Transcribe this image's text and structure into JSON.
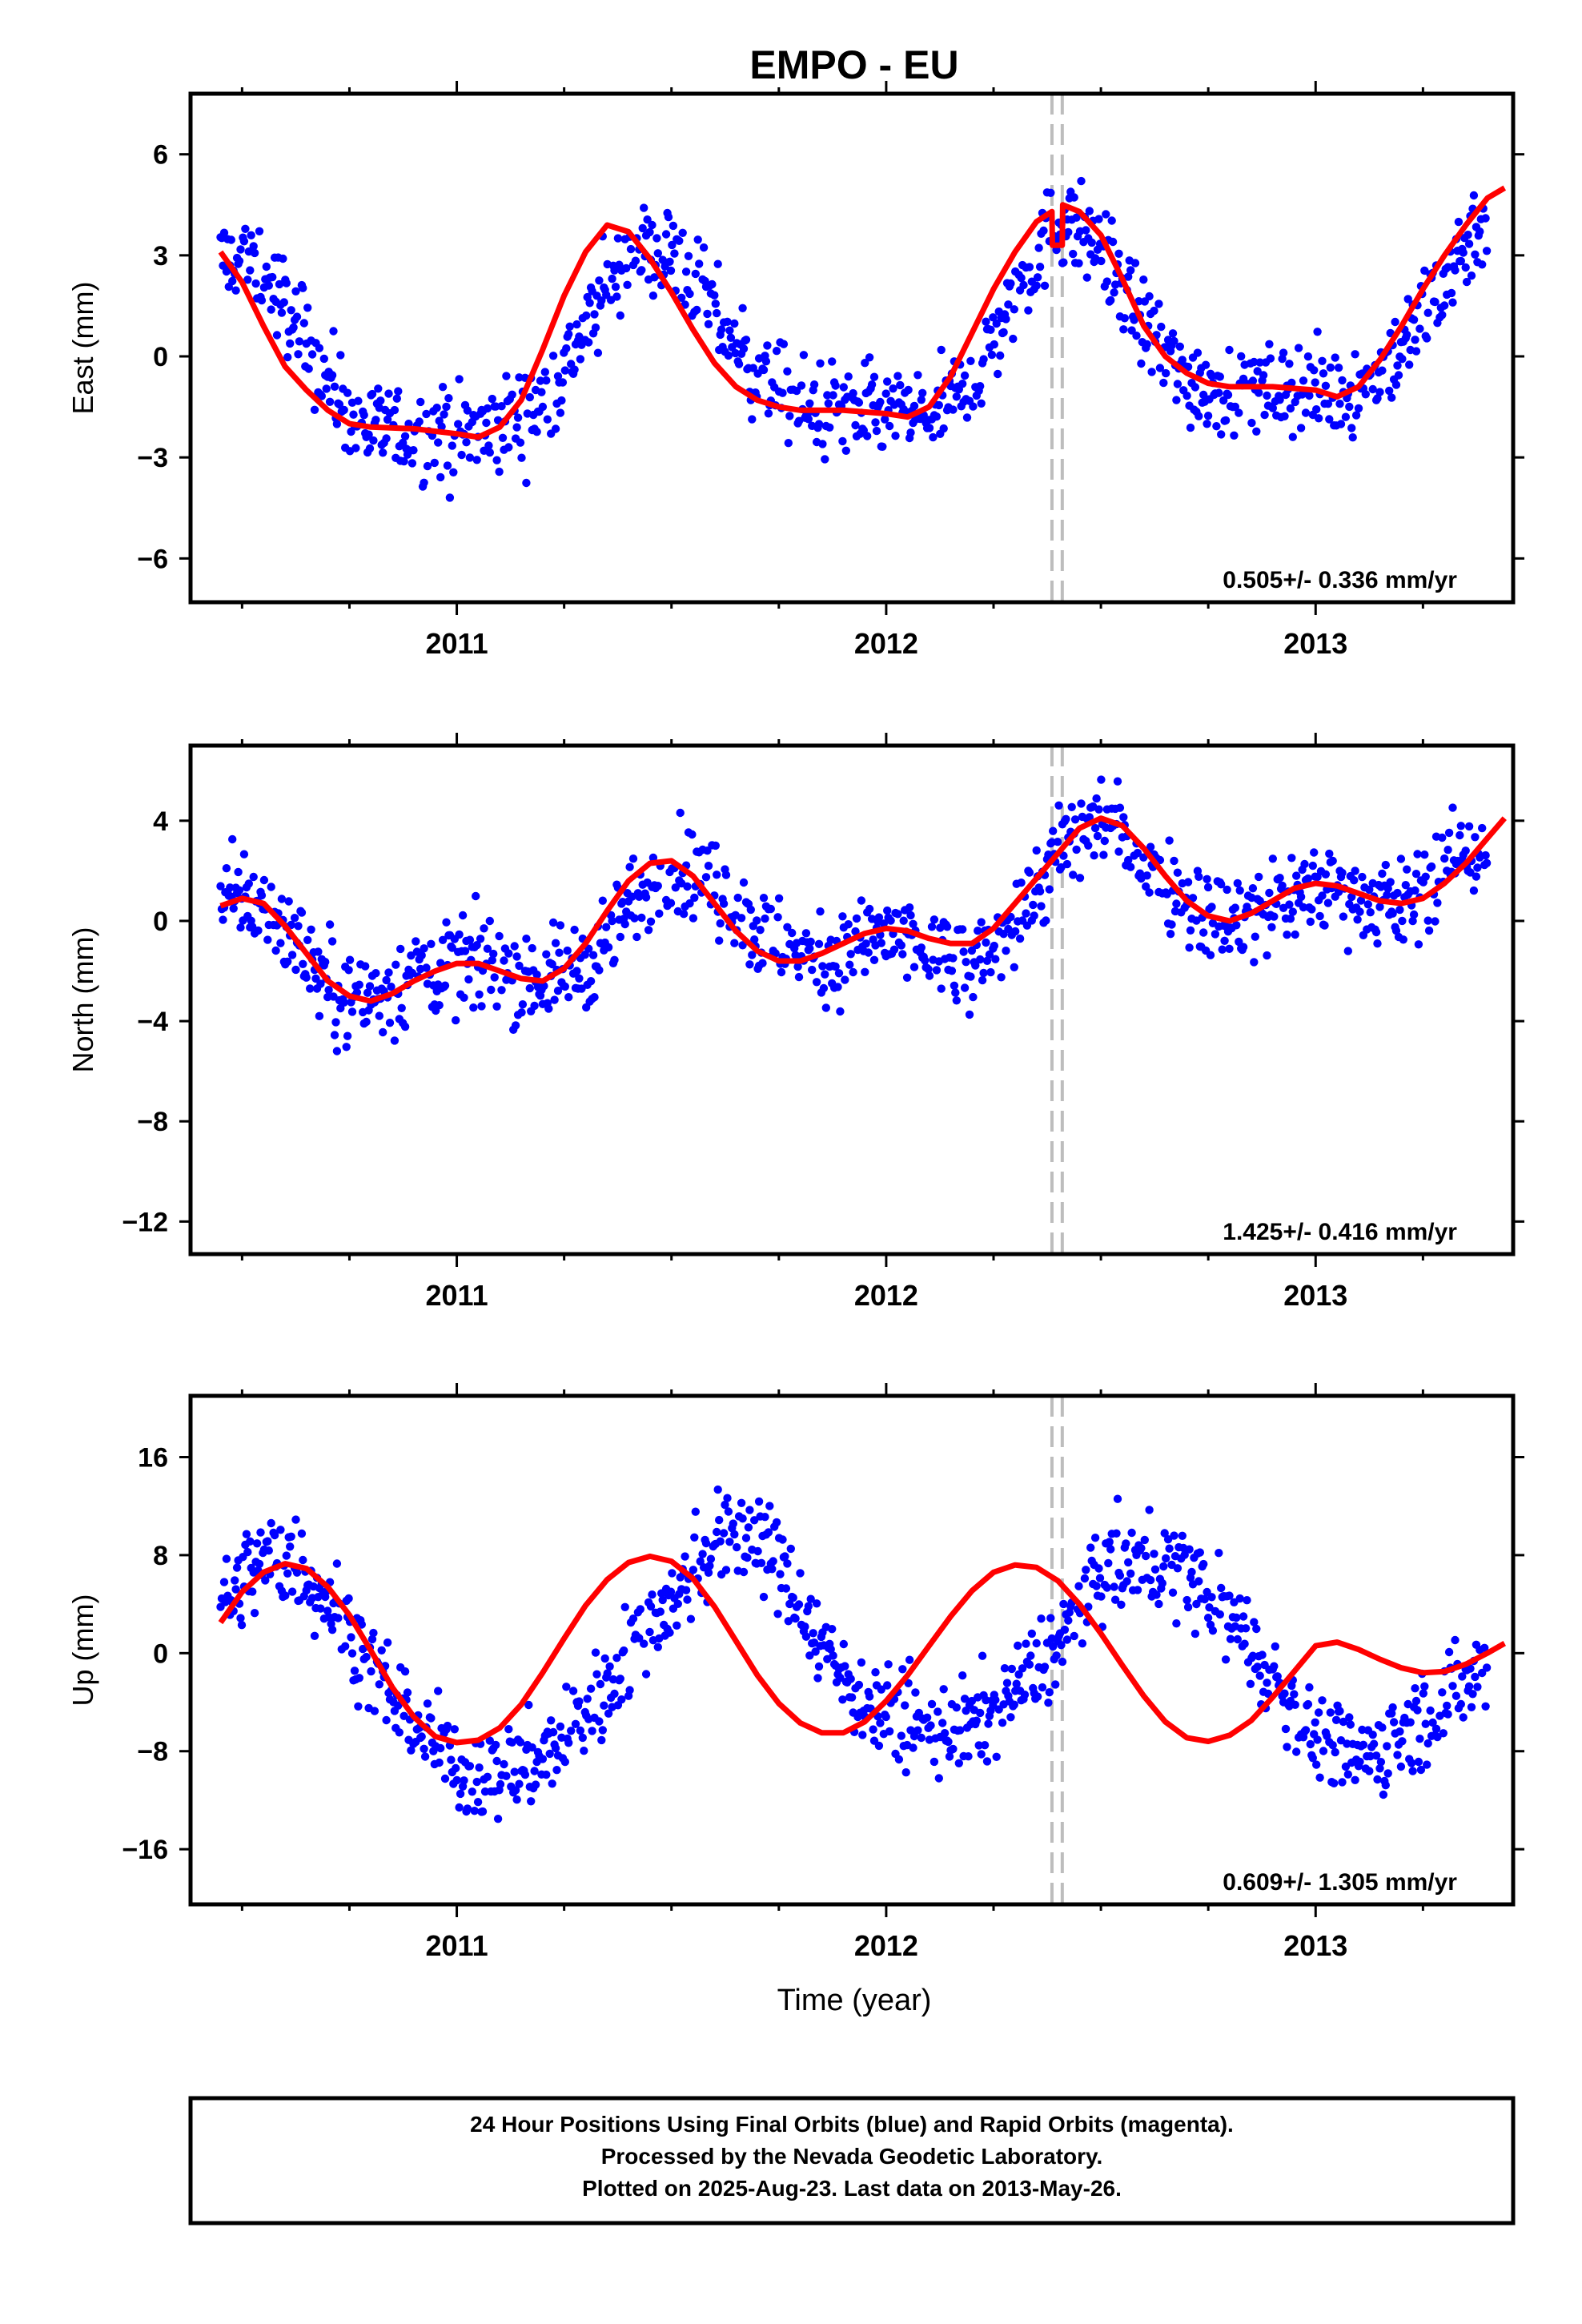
{
  "title": "EMPO - EU",
  "colors": {
    "points": "#0000ff",
    "fit": "#ff0000",
    "offset_lines": "#bdbdbd",
    "frame": "#000000"
  },
  "x_axis": {
    "label": "Time (year)",
    "ticks": [
      2011,
      2012,
      2013
    ],
    "tick_labels": [
      "2011",
      "2012",
      "2013"
    ],
    "minor_ticks": [
      2010.5,
      2010.75,
      2011.25,
      2011.5,
      2011.75,
      2012.25,
      2012.5,
      2012.75,
      2013.25
    ],
    "range": [
      2010.38,
      2013.46
    ]
  },
  "offset_lines": [
    2012.386,
    2012.41
  ],
  "footer": {
    "line1": "24 Hour Positions Using Final Orbits (blue) and Rapid Orbits (magenta).",
    "line2": "Processed by the Nevada Geodetic Laboratory.",
    "line3": "Plotted on 2025-Aug-23. Last data on 2013-May-26."
  },
  "chart_data": [
    {
      "type": "scatter",
      "title": "EMPO - EU",
      "ylabel": "East (mm)",
      "xlabel": "",
      "ylim": [
        -7.3,
        7.8
      ],
      "yticks": [
        -6,
        -3,
        0,
        3,
        6
      ],
      "ytick_labels": [
        "−6",
        "−3",
        "0",
        "3",
        "6"
      ],
      "rate_text": "0.505+/- 0.336 mm/yr",
      "series": [
        {
          "name": "Final Orbits",
          "x": [
            2010.45,
            2010.5,
            2010.55,
            2010.6,
            2010.65,
            2010.7,
            2010.75,
            2010.8,
            2010.9,
            2011.0,
            2011.1,
            2011.2,
            2011.3,
            2011.4,
            2011.5,
            2011.6,
            2011.7,
            2011.8,
            2011.9,
            2012.0,
            2012.1,
            2012.2,
            2012.3,
            2012.4,
            2012.5,
            2012.6,
            2012.7,
            2012.8,
            2012.9,
            2013.0,
            2013.1,
            2013.2,
            2013.3,
            2013.4
          ],
          "values": [
            2.8,
            2.9,
            2.4,
            1.5,
            0.5,
            -0.7,
            -1.6,
            -2.2,
            -2.3,
            -2.4,
            -2.2,
            -1.4,
            0.8,
            3.1,
            3.1,
            1.3,
            -0.5,
            -1.5,
            -1.6,
            -1.7,
            -1.8,
            -0.8,
            1.8,
            4.1,
            3.3,
            0.9,
            -0.7,
            -1.0,
            -0.9,
            -1.1,
            -1.0,
            0.2,
            2.3,
            4.4
          ]
        }
      ],
      "fit": {
        "name": "Model",
        "x": [
          2010.45,
          2010.5,
          2010.55,
          2010.6,
          2010.65,
          2010.7,
          2010.75,
          2010.8,
          2010.9,
          2011.0,
          2011.05,
          2011.1,
          2011.15,
          2011.2,
          2011.25,
          2011.3,
          2011.35,
          2011.4,
          2011.45,
          2011.5,
          2011.55,
          2011.6,
          2011.65,
          2011.7,
          2011.75,
          2011.8,
          2011.9,
          2012.0,
          2012.05,
          2012.1,
          2012.15,
          2012.2,
          2012.25,
          2012.3,
          2012.35,
          2012.386,
          2012.387,
          2012.41,
          2012.411,
          2012.45,
          2012.5,
          2012.55,
          2012.6,
          2012.65,
          2012.7,
          2012.75,
          2012.8,
          2012.9,
          2013.0,
          2013.05,
          2013.1,
          2013.15,
          2013.2,
          2013.25,
          2013.3,
          2013.35,
          2013.4,
          2013.44
        ],
        "values": [
          3.1,
          2.2,
          0.9,
          -0.3,
          -1.0,
          -1.6,
          -2.0,
          -2.1,
          -2.15,
          -2.3,
          -2.4,
          -2.1,
          -1.3,
          0.2,
          1.8,
          3.1,
          3.9,
          3.7,
          2.9,
          1.9,
          0.8,
          -0.2,
          -0.9,
          -1.3,
          -1.5,
          -1.6,
          -1.6,
          -1.7,
          -1.8,
          -1.5,
          -0.6,
          0.7,
          2.0,
          3.1,
          4.0,
          4.3,
          3.3,
          3.3,
          4.5,
          4.3,
          3.6,
          2.3,
          0.9,
          0.0,
          -0.5,
          -0.8,
          -0.9,
          -0.9,
          -1.0,
          -1.2,
          -0.9,
          -0.1,
          0.9,
          2.0,
          3.0,
          3.9,
          4.7,
          5.0
        ]
      }
    },
    {
      "type": "scatter",
      "title": "",
      "ylabel": "North (mm)",
      "xlabel": "",
      "ylim": [
        -13.3,
        7.0
      ],
      "yticks": [
        -12,
        -8,
        -4,
        0,
        4
      ],
      "ytick_labels": [
        "−12",
        "−8",
        "−4",
        "0",
        "4"
      ],
      "rate_text": "1.425+/- 0.416 mm/yr",
      "series": [
        {
          "name": "Final Orbits",
          "x": [
            2010.45,
            2010.5,
            2010.55,
            2010.6,
            2010.65,
            2010.7,
            2010.75,
            2010.8,
            2010.9,
            2011.0,
            2011.1,
            2011.2,
            2011.3,
            2011.4,
            2011.5,
            2011.6,
            2011.7,
            2011.8,
            2011.9,
            2012.0,
            2012.1,
            2012.2,
            2012.3,
            2012.4,
            2012.5,
            2012.6,
            2012.7,
            2012.8,
            2012.9,
            2013.0,
            2013.1,
            2013.2,
            2013.3,
            2013.4
          ],
          "values": [
            0.7,
            1.0,
            0.5,
            -0.2,
            -1.3,
            -2.5,
            -3.3,
            -3.0,
            -2.2,
            -1.7,
            -1.8,
            -2.3,
            -1.8,
            0.6,
            2.2,
            1.5,
            -0.4,
            -1.5,
            -1.4,
            -0.6,
            -1.3,
            -2.2,
            0.2,
            2.5,
            4.2,
            2.5,
            0.9,
            -0.2,
            0.6,
            1.4,
            1.2,
            0.5,
            2.2,
            3.1
          ]
        }
      ],
      "fit": {
        "name": "Model",
        "x": [
          2010.45,
          2010.5,
          2010.55,
          2010.6,
          2010.65,
          2010.7,
          2010.75,
          2010.8,
          2010.85,
          2010.9,
          2010.95,
          2011.0,
          2011.05,
          2011.1,
          2011.15,
          2011.2,
          2011.25,
          2011.3,
          2011.35,
          2011.4,
          2011.45,
          2011.5,
          2011.55,
          2011.6,
          2011.65,
          2011.7,
          2011.75,
          2011.8,
          2011.85,
          2011.9,
          2011.95,
          2012.0,
          2012.05,
          2012.1,
          2012.15,
          2012.2,
          2012.25,
          2012.3,
          2012.35,
          2012.4,
          2012.45,
          2012.5,
          2012.55,
          2012.6,
          2012.65,
          2012.7,
          2012.75,
          2012.8,
          2012.85,
          2012.9,
          2012.95,
          2013.0,
          2013.05,
          2013.1,
          2013.15,
          2013.2,
          2013.25,
          2013.3,
          2013.35,
          2013.4,
          2013.44
        ],
        "values": [
          0.6,
          0.9,
          0.7,
          -0.2,
          -1.3,
          -2.4,
          -3.0,
          -3.2,
          -2.9,
          -2.4,
          -2.0,
          -1.7,
          -1.7,
          -2.0,
          -2.3,
          -2.4,
          -1.9,
          -0.9,
          0.4,
          1.6,
          2.3,
          2.4,
          1.8,
          0.7,
          -0.4,
          -1.2,
          -1.6,
          -1.6,
          -1.3,
          -0.9,
          -0.5,
          -0.3,
          -0.4,
          -0.7,
          -0.9,
          -0.9,
          -0.3,
          0.7,
          1.7,
          2.7,
          3.7,
          4.1,
          3.8,
          2.9,
          1.8,
          0.8,
          0.2,
          0.0,
          0.3,
          0.8,
          1.3,
          1.5,
          1.4,
          1.1,
          0.8,
          0.7,
          0.9,
          1.5,
          2.3,
          3.3,
          4.1
        ]
      }
    },
    {
      "type": "scatter",
      "title": "",
      "ylabel": "Up (mm)",
      "xlabel": "Time (year)",
      "ylim": [
        -20.5,
        21.0
      ],
      "yticks": [
        -16,
        -8,
        0,
        8,
        16
      ],
      "ytick_labels": [
        "−16",
        "−8",
        "0",
        "8",
        "16"
      ],
      "rate_text": "0.609+/- 1.305 mm/yr",
      "series": [
        {
          "name": "Final Orbits",
          "x": [
            2010.45,
            2010.5,
            2010.55,
            2010.6,
            2010.65,
            2010.7,
            2010.75,
            2010.8,
            2010.9,
            2011.0,
            2011.1,
            2011.2,
            2011.3,
            2011.4,
            2011.5,
            2011.6,
            2011.7,
            2011.8,
            2011.9,
            2012.0,
            2012.1,
            2012.2,
            2012.3,
            2012.4,
            2012.5,
            2012.6,
            2012.7,
            2012.8,
            2012.9,
            2013.0,
            2013.1,
            2013.2,
            2013.3,
            2013.4
          ],
          "values": [
            3.0,
            6.0,
            7.5,
            7.5,
            6.5,
            4.5,
            2.0,
            -1.0,
            -5.5,
            -9.5,
            -10.0,
            -8.5,
            -5.0,
            0.0,
            4.5,
            9.0,
            10.0,
            4.0,
            -2.0,
            -5.0,
            -6.5,
            -6.0,
            -3.0,
            0.5,
            6.5,
            7.5,
            6.5,
            3.0,
            -2.0,
            -7.0,
            -8.5,
            -6.5,
            -4.0,
            -1.0
          ]
        }
      ],
      "fit": {
        "name": "Model",
        "x": [
          2010.45,
          2010.5,
          2010.55,
          2010.6,
          2010.65,
          2010.7,
          2010.75,
          2010.8,
          2010.85,
          2010.9,
          2010.95,
          2011.0,
          2011.05,
          2011.1,
          2011.15,
          2011.2,
          2011.25,
          2011.3,
          2011.35,
          2011.4,
          2011.45,
          2011.5,
          2011.55,
          2011.6,
          2011.65,
          2011.7,
          2011.75,
          2011.8,
          2011.85,
          2011.9,
          2011.95,
          2012.0,
          2012.05,
          2012.1,
          2012.15,
          2012.2,
          2012.25,
          2012.3,
          2012.35,
          2012.4,
          2012.45,
          2012.5,
          2012.55,
          2012.6,
          2012.65,
          2012.7,
          2012.75,
          2012.8,
          2012.85,
          2012.9,
          2012.95,
          2013.0,
          2013.05,
          2013.1,
          2013.15,
          2013.2,
          2013.25,
          2013.3,
          2013.35,
          2013.4,
          2013.44
        ],
        "values": [
          2.5,
          5.0,
          6.6,
          7.3,
          6.9,
          5.4,
          3.1,
          0.2,
          -2.8,
          -5.2,
          -6.8,
          -7.3,
          -7.1,
          -6.1,
          -4.2,
          -1.6,
          1.2,
          3.9,
          6.0,
          7.4,
          7.9,
          7.5,
          6.1,
          3.8,
          1.0,
          -1.8,
          -4.1,
          -5.7,
          -6.5,
          -6.5,
          -5.6,
          -3.9,
          -1.8,
          0.6,
          3.0,
          5.1,
          6.6,
          7.2,
          7.0,
          5.9,
          4.0,
          1.6,
          -1.0,
          -3.5,
          -5.6,
          -6.9,
          -7.2,
          -6.7,
          -5.5,
          -3.6,
          -1.5,
          0.6,
          0.9,
          0.3,
          -0.5,
          -1.2,
          -1.6,
          -1.5,
          -0.9,
          0.0,
          0.8
        ]
      }
    }
  ]
}
